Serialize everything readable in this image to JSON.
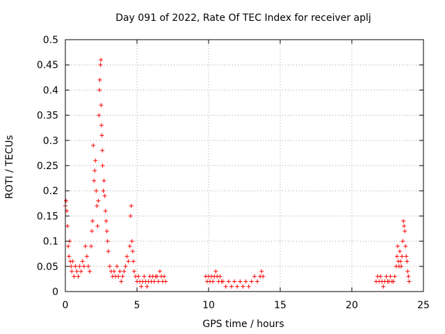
{
  "chart_data": {
    "type": "scatter",
    "title": "Day 091 of 2022, Rate Of TEC Index for receiver aplj",
    "xlabel": "GPS time / hours",
    "ylabel": "ROTI / TECUs",
    "xlim": [
      0,
      25
    ],
    "ylim": [
      0,
      0.5
    ],
    "xticks": [
      0,
      5,
      10,
      15,
      20,
      25
    ],
    "xtick_labels": [
      "0",
      "5",
      "10",
      "15",
      "20",
      "25"
    ],
    "yticks": [
      0,
      0.05,
      0.1,
      0.15,
      0.2,
      0.25,
      0.3,
      0.35,
      0.4,
      0.45,
      0.5
    ],
    "ytick_labels": [
      "0",
      "0.05",
      "0.1",
      "0.15",
      "0.2",
      "0.25",
      "0.3",
      "0.35",
      "0.4",
      "0.45",
      "0.5"
    ],
    "grid": true,
    "marker": "+",
    "color": "#ff0000",
    "series": [
      {
        "name": "ROTI",
        "points": [
          [
            0.0,
            0.17
          ],
          [
            0.05,
            0.18
          ],
          [
            0.1,
            0.16
          ],
          [
            0.15,
            0.13
          ],
          [
            0.2,
            0.09
          ],
          [
            0.25,
            0.07
          ],
          [
            0.3,
            0.1
          ],
          [
            0.35,
            0.06
          ],
          [
            0.4,
            0.05
          ],
          [
            0.45,
            0.04
          ],
          [
            0.5,
            0.06
          ],
          [
            0.6,
            0.03
          ],
          [
            0.7,
            0.05
          ],
          [
            0.8,
            0.04
          ],
          [
            0.9,
            0.03
          ],
          [
            1.0,
            0.05
          ],
          [
            1.1,
            0.04
          ],
          [
            1.2,
            0.06
          ],
          [
            1.3,
            0.05
          ],
          [
            1.4,
            0.09
          ],
          [
            1.5,
            0.07
          ],
          [
            1.6,
            0.05
          ],
          [
            1.7,
            0.04
          ],
          [
            1.8,
            0.09
          ],
          [
            1.85,
            0.12
          ],
          [
            1.9,
            0.14
          ],
          [
            1.95,
            0.29
          ],
          [
            2.0,
            0.22
          ],
          [
            2.05,
            0.24
          ],
          [
            2.1,
            0.26
          ],
          [
            2.15,
            0.2
          ],
          [
            2.2,
            0.17
          ],
          [
            2.25,
            0.13
          ],
          [
            2.3,
            0.18
          ],
          [
            2.35,
            0.35
          ],
          [
            2.38,
            0.4
          ],
          [
            2.4,
            0.42
          ],
          [
            2.45,
            0.45
          ],
          [
            2.48,
            0.46
          ],
          [
            2.5,
            0.37
          ],
          [
            2.52,
            0.33
          ],
          [
            2.55,
            0.31
          ],
          [
            2.58,
            0.28
          ],
          [
            2.6,
            0.25
          ],
          [
            2.65,
            0.2
          ],
          [
            2.7,
            0.22
          ],
          [
            2.75,
            0.19
          ],
          [
            2.8,
            0.16
          ],
          [
            2.85,
            0.14
          ],
          [
            2.9,
            0.12
          ],
          [
            2.95,
            0.1
          ],
          [
            3.0,
            0.08
          ],
          [
            3.1,
            0.05
          ],
          [
            3.2,
            0.04
          ],
          [
            3.3,
            0.03
          ],
          [
            3.4,
            0.04
          ],
          [
            3.5,
            0.03
          ],
          [
            3.6,
            0.05
          ],
          [
            3.7,
            0.03
          ],
          [
            3.8,
            0.04
          ],
          [
            3.9,
            0.02
          ],
          [
            4.0,
            0.03
          ],
          [
            4.1,
            0.04
          ],
          [
            4.2,
            0.05
          ],
          [
            4.3,
            0.07
          ],
          [
            4.4,
            0.06
          ],
          [
            4.5,
            0.09
          ],
          [
            4.55,
            0.15
          ],
          [
            4.6,
            0.17
          ],
          [
            4.65,
            0.1
          ],
          [
            4.7,
            0.08
          ],
          [
            4.75,
            0.06
          ],
          [
            4.8,
            0.04
          ],
          [
            4.9,
            0.03
          ],
          [
            5.0,
            0.02
          ],
          [
            5.1,
            0.03
          ],
          [
            5.2,
            0.02
          ],
          [
            5.3,
            0.01
          ],
          [
            5.4,
            0.02
          ],
          [
            5.5,
            0.03
          ],
          [
            5.6,
            0.02
          ],
          [
            5.7,
            0.01
          ],
          [
            5.8,
            0.02
          ],
          [
            5.9,
            0.03
          ],
          [
            6.0,
            0.02
          ],
          [
            6.1,
            0.03
          ],
          [
            6.2,
            0.02
          ],
          [
            6.3,
            0.03
          ],
          [
            6.4,
            0.03
          ],
          [
            6.5,
            0.02
          ],
          [
            6.6,
            0.04
          ],
          [
            6.7,
            0.03
          ],
          [
            6.8,
            0.02
          ],
          [
            6.9,
            0.03
          ],
          [
            7.0,
            0.02
          ],
          [
            9.8,
            0.03
          ],
          [
            9.9,
            0.02
          ],
          [
            10.0,
            0.03
          ],
          [
            10.1,
            0.02
          ],
          [
            10.2,
            0.03
          ],
          [
            10.3,
            0.02
          ],
          [
            10.4,
            0.03
          ],
          [
            10.5,
            0.04
          ],
          [
            10.6,
            0.03
          ],
          [
            10.7,
            0.02
          ],
          [
            10.8,
            0.03
          ],
          [
            10.9,
            0.02
          ],
          [
            11.0,
            0.02
          ],
          [
            11.2,
            0.01
          ],
          [
            11.4,
            0.02
          ],
          [
            11.6,
            0.01
          ],
          [
            11.8,
            0.02
          ],
          [
            12.0,
            0.01
          ],
          [
            12.2,
            0.02
          ],
          [
            12.4,
            0.01
          ],
          [
            12.6,
            0.02
          ],
          [
            12.8,
            0.01
          ],
          [
            13.0,
            0.02
          ],
          [
            13.2,
            0.03
          ],
          [
            13.4,
            0.02
          ],
          [
            13.6,
            0.03
          ],
          [
            13.7,
            0.04
          ],
          [
            13.8,
            0.03
          ],
          [
            21.7,
            0.02
          ],
          [
            21.8,
            0.03
          ],
          [
            21.9,
            0.02
          ],
          [
            22.0,
            0.03
          ],
          [
            22.1,
            0.02
          ],
          [
            22.2,
            0.01
          ],
          [
            22.3,
            0.02
          ],
          [
            22.4,
            0.03
          ],
          [
            22.5,
            0.02
          ],
          [
            22.6,
            0.02
          ],
          [
            22.7,
            0.03
          ],
          [
            22.8,
            0.02
          ],
          [
            22.9,
            0.02
          ],
          [
            23.0,
            0.03
          ],
          [
            23.1,
            0.05
          ],
          [
            23.15,
            0.07
          ],
          [
            23.2,
            0.09
          ],
          [
            23.25,
            0.06
          ],
          [
            23.3,
            0.05
          ],
          [
            23.35,
            0.08
          ],
          [
            23.4,
            0.06
          ],
          [
            23.45,
            0.05
          ],
          [
            23.5,
            0.07
          ],
          [
            23.55,
            0.1
          ],
          [
            23.6,
            0.14
          ],
          [
            23.65,
            0.13
          ],
          [
            23.7,
            0.12
          ],
          [
            23.75,
            0.09
          ],
          [
            23.8,
            0.07
          ],
          [
            23.85,
            0.06
          ],
          [
            23.9,
            0.04
          ],
          [
            23.95,
            0.03
          ],
          [
            24.0,
            0.02
          ]
        ]
      }
    ]
  }
}
